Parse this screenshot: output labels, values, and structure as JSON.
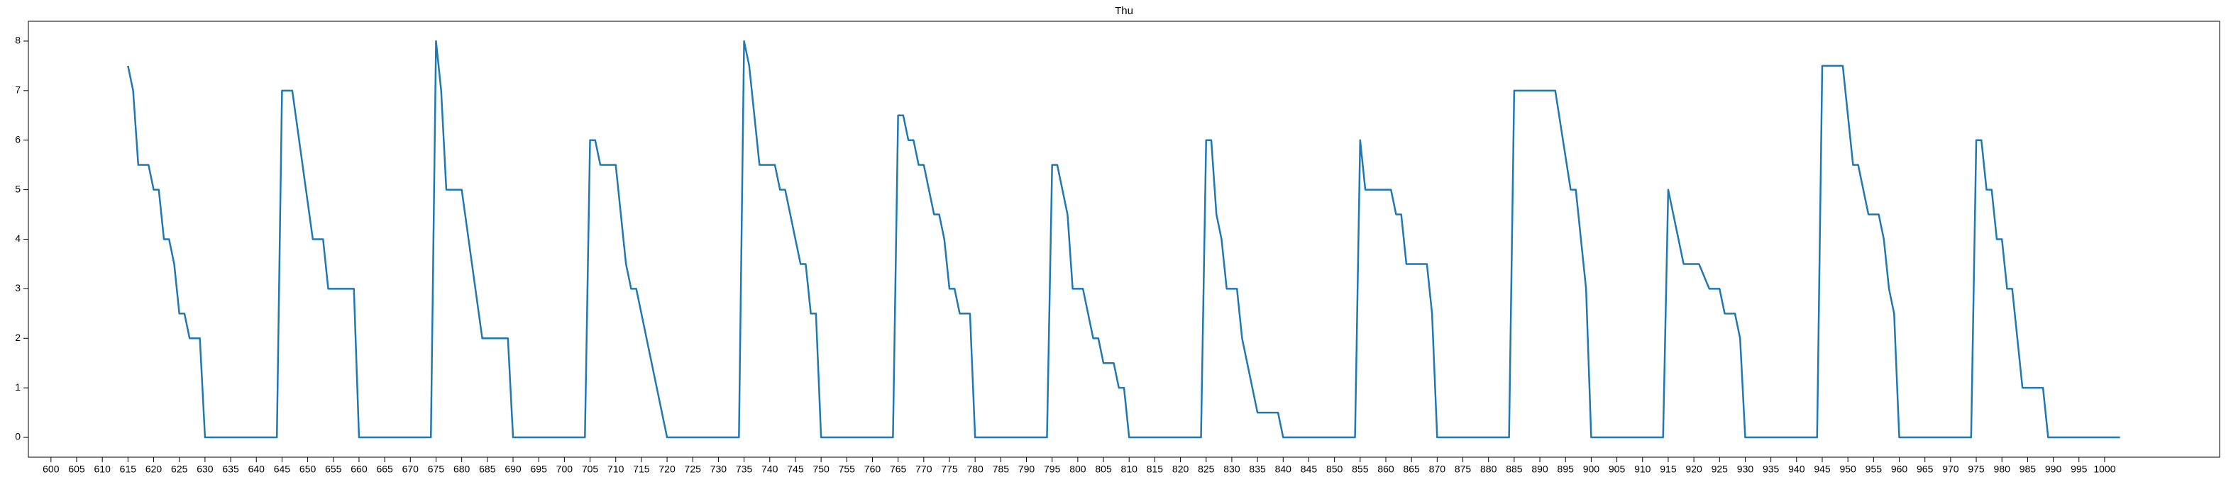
{
  "chart_data": {
    "type": "line",
    "title": "Thu",
    "x": [
      615,
      616,
      617,
      619,
      620,
      621,
      622,
      623,
      624,
      625,
      626,
      627,
      629,
      630,
      644,
      645,
      647,
      651,
      653,
      654,
      659,
      660,
      674,
      675,
      676,
      677,
      680,
      684,
      689,
      690,
      704,
      705,
      706,
      707,
      710,
      712,
      713,
      714,
      720,
      734,
      735,
      736,
      738,
      741,
      742,
      743,
      746,
      747,
      748,
      749,
      750,
      764,
      765,
      766,
      767,
      768,
      769,
      770,
      772,
      773,
      774,
      775,
      776,
      777,
      779,
      780,
      794,
      795,
      796,
      798,
      799,
      801,
      803,
      804,
      805,
      807,
      808,
      809,
      810,
      824,
      825,
      826,
      827,
      828,
      829,
      831,
      832,
      835,
      839,
      840,
      854,
      855,
      856,
      861,
      862,
      863,
      864,
      868,
      869,
      870,
      884,
      885,
      893,
      896,
      897,
      899,
      900,
      914,
      915,
      918,
      921,
      923,
      925,
      926,
      928,
      929,
      930,
      944,
      945,
      949,
      951,
      952,
      954,
      956,
      957,
      958,
      959,
      960,
      974,
      975,
      976,
      977,
      978,
      979,
      980,
      981,
      982,
      984,
      988,
      989,
      1003
    ],
    "values": [
      7.5,
      7,
      5.5,
      5.5,
      5,
      5,
      4,
      4,
      3.5,
      2.5,
      2.5,
      2,
      2,
      0,
      0,
      7,
      7,
      4,
      4,
      3,
      3,
      0,
      0,
      8,
      7,
      5,
      5,
      2,
      2,
      0,
      0,
      6,
      6,
      5.5,
      5.5,
      3.5,
      3,
      3,
      0,
      0,
      8,
      7.5,
      5.5,
      5.5,
      5,
      5,
      3.5,
      3.5,
      2.5,
      2.5,
      0,
      0,
      6.5,
      6.5,
      6,
      6,
      5.5,
      5.5,
      4.5,
      4.5,
      4,
      3,
      3,
      2.5,
      2.5,
      0,
      0,
      5.5,
      5.5,
      4.5,
      3,
      3,
      2,
      2,
      1.5,
      1.5,
      1,
      1,
      0,
      0,
      6,
      6,
      4.5,
      4,
      3,
      3,
      2,
      0.5,
      0.5,
      0,
      0,
      6,
      5,
      5,
      4.5,
      4.5,
      3.5,
      3.5,
      2.5,
      0,
      0,
      7,
      7,
      5,
      5,
      3,
      0,
      0,
      5,
      3.5,
      3.5,
      3,
      3,
      2.5,
      2.5,
      2,
      0,
      0,
      7.5,
      7.5,
      5.5,
      5.5,
      4.5,
      4.5,
      4,
      3,
      2.5,
      0,
      0,
      6,
      6,
      5,
      5,
      4,
      4,
      3,
      3,
      1,
      1,
      0,
      0
    ],
    "color": "#1f77b4",
    "xlim": [
      595.6,
      1022.4
    ],
    "xticks": [
      600,
      605,
      610,
      615,
      620,
      625,
      630,
      635,
      640,
      645,
      650,
      655,
      660,
      665,
      670,
      675,
      680,
      685,
      690,
      695,
      700,
      705,
      710,
      715,
      720,
      725,
      730,
      735,
      740,
      745,
      750,
      755,
      760,
      765,
      770,
      775,
      780,
      785,
      790,
      795,
      800,
      805,
      810,
      815,
      820,
      825,
      830,
      835,
      840,
      845,
      850,
      855,
      860,
      865,
      870,
      875,
      880,
      885,
      890,
      895,
      900,
      905,
      910,
      915,
      920,
      925,
      930,
      935,
      940,
      945,
      950,
      955,
      960,
      965,
      970,
      975,
      980,
      985,
      990,
      995,
      1000
    ],
    "ylim": [
      -0.4,
      8.4
    ],
    "yticks": [
      0,
      1,
      2,
      3,
      4,
      5,
      6,
      7,
      8
    ],
    "grid": false
  }
}
